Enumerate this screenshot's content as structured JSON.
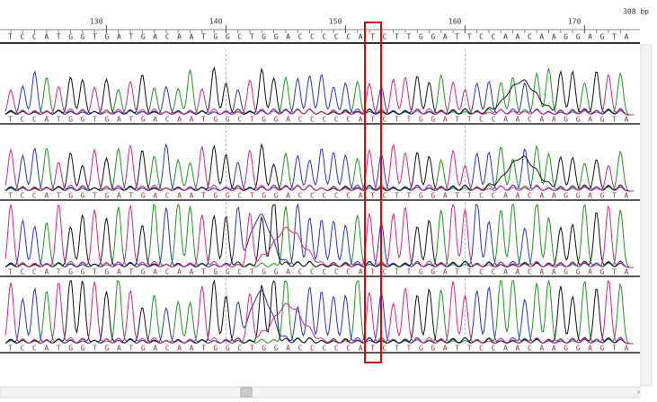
{
  "ruler": {
    "ticks": [
      130,
      140,
      150,
      160,
      170
    ],
    "length_label": "308 bp"
  },
  "consensus": "TCCATGGTGATGACAATGGCTGGACCCCCATCTTGGATTCCAACAAGGAGTA",
  "tracks": [
    {
      "sequence": "TCCATGGTGATGACAATGGCTGGACCCCCATCTTGGATTCCAACAAGGAGTA"
    },
    {
      "sequence": "TCCATGGTGATGACAATGGCTGGACCCCCATCTTGGATTCCAACAAGGAGTA"
    },
    {
      "sequence": "TCCATGGTGATGACAATGGCTGGACCCCCATCTTGGATTCCAACAAGGAGTA"
    },
    {
      "sequence": "TCCATGGTGATGACAATGGCTGGACCCCCATCTTGGATTCCAACAAGGAGTA"
    }
  ]
}
